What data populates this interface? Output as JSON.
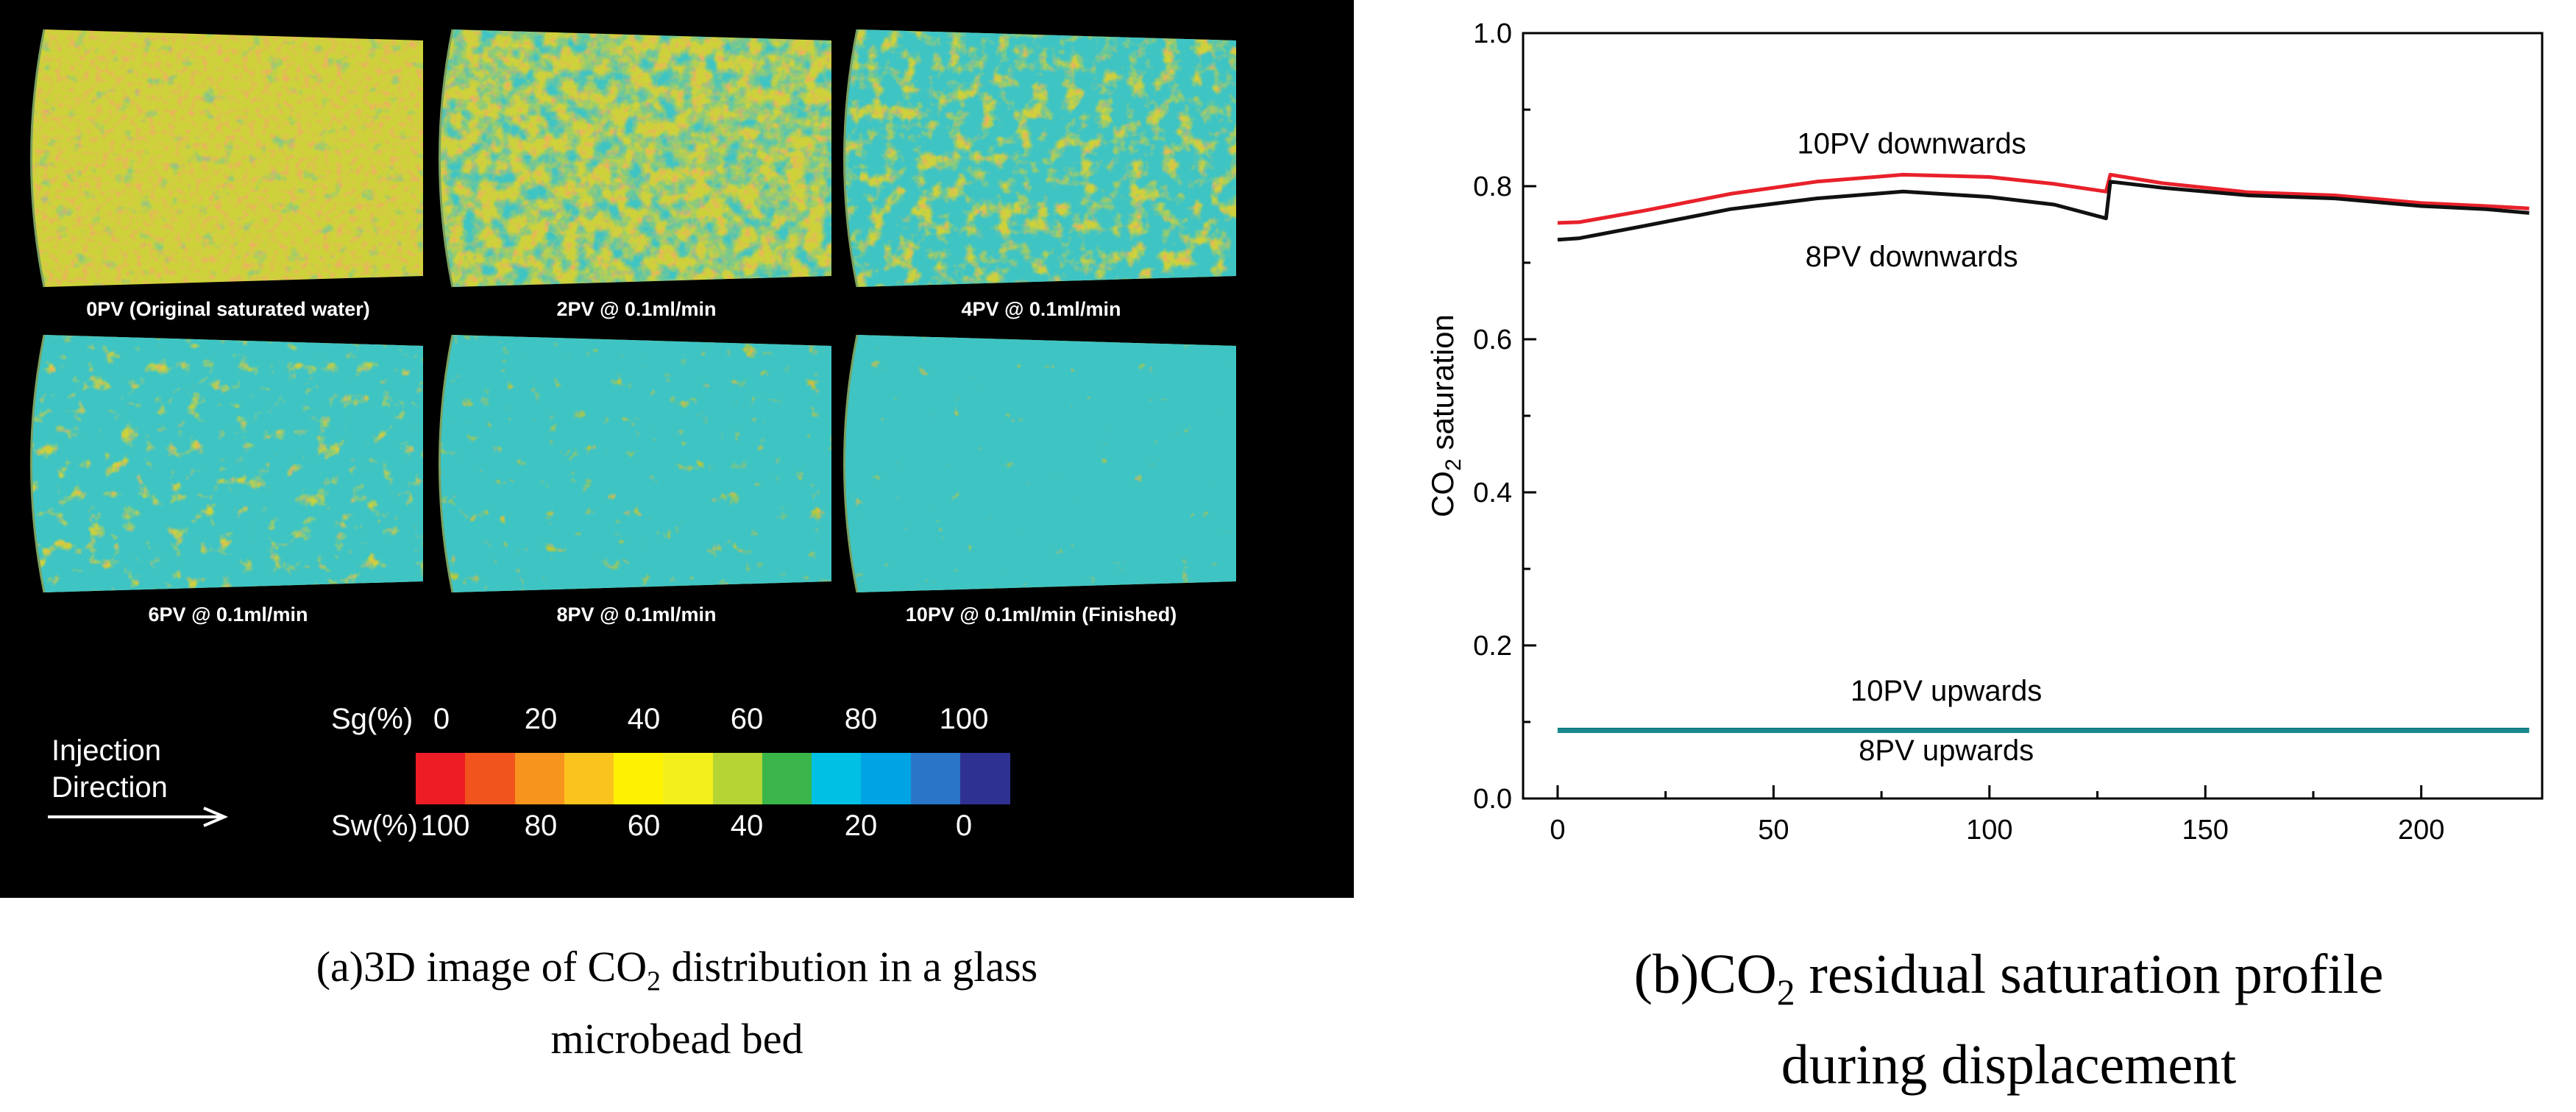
{
  "panel_a": {
    "beds": [
      {
        "label": "0PV (Original saturated water)",
        "level": 0
      },
      {
        "label": "2PV @ 0.1ml/min",
        "level": 1
      },
      {
        "label": "4PV @ 0.1ml/min",
        "level": 2
      },
      {
        "label": "6PV @ 0.1ml/min",
        "level": 3
      },
      {
        "label": "8PV @ 0.1ml/min",
        "level": 4
      },
      {
        "label": "10PV @ 0.1ml/min (Finished)",
        "level": 5
      }
    ],
    "sg_label": "Sg(%)",
    "sw_label": "Sw(%)",
    "sg_ticks": [
      "0",
      "20",
      "40",
      "60",
      "80",
      "100"
    ],
    "sw_ticks": [
      "100",
      "80",
      "60",
      "40",
      "20",
      "0"
    ],
    "colorbar": [
      "#ee1c24",
      "#f2541d",
      "#f7941d",
      "#fbc41d",
      "#fff200",
      "#f2ef1c",
      "#b6d433",
      "#39b54a",
      "#00c0e4",
      "#00a4e4",
      "#2a75c8",
      "#2e3192"
    ],
    "injection_label_line1": "Injection",
    "injection_label_line2": "Direction"
  },
  "captions": {
    "a_prefix": "(a)3D image of CO",
    "a_sub": "2",
    "a_suffix": " distribution in a glass",
    "a_line2": "microbead bed",
    "b_prefix": "(b)CO",
    "b_sub": "2",
    "b_suffix": " residual saturation profile",
    "b_line2": "during displacement"
  },
  "chart_data": {
    "type": "line",
    "title": "",
    "xlabel": "",
    "ylabel_main": "CO",
    "ylabel_sub": "2",
    "ylabel_rest": " saturation",
    "xlim": [
      -8,
      228
    ],
    "ylim": [
      0.0,
      1.0
    ],
    "xticks": [
      0,
      50,
      100,
      150,
      200
    ],
    "yticks": [
      0.0,
      0.2,
      0.4,
      0.6,
      0.8,
      1.0
    ],
    "ytick_labels": [
      "0.0",
      "0.2",
      "0.4",
      "0.6",
      "0.8",
      "1.0"
    ],
    "series": [
      {
        "name": "10PV downwards",
        "color": "#e8212b",
        "x": [
          0,
          5,
          20,
          40,
          60,
          80,
          100,
          115,
          127,
          128,
          140,
          160,
          180,
          200,
          215,
          225
        ],
        "y": [
          0.752,
          0.753,
          0.768,
          0.79,
          0.806,
          0.815,
          0.812,
          0.803,
          0.793,
          0.815,
          0.804,
          0.792,
          0.788,
          0.778,
          0.774,
          0.771
        ]
      },
      {
        "name": "8PV downwards",
        "color": "#111111",
        "x": [
          0,
          5,
          20,
          40,
          60,
          80,
          100,
          115,
          127,
          128,
          140,
          160,
          180,
          200,
          215,
          225
        ],
        "y": [
          0.73,
          0.732,
          0.748,
          0.77,
          0.784,
          0.793,
          0.786,
          0.776,
          0.758,
          0.806,
          0.798,
          0.788,
          0.784,
          0.774,
          0.77,
          0.765
        ]
      },
      {
        "name": "10PV upwards",
        "color": "#0f7a80",
        "x": [
          0,
          50,
          100,
          150,
          200,
          225
        ],
        "y": [
          0.09,
          0.09,
          0.09,
          0.09,
          0.09,
          0.09
        ]
      },
      {
        "name": "8PV upwards",
        "color": "#1a8a8f",
        "x": [
          0,
          50,
          100,
          150,
          200,
          225
        ],
        "y": [
          0.088,
          0.088,
          0.088,
          0.088,
          0.088,
          0.088
        ]
      }
    ],
    "annotations": [
      {
        "text": "10PV downwards",
        "x": 82,
        "y": 0.843
      },
      {
        "text": "8PV downwards",
        "x": 82,
        "y": 0.695
      },
      {
        "text": "10PV upwards",
        "x": 90,
        "y": 0.128
      },
      {
        "text": "8PV upwards",
        "x": 90,
        "y": 0.05
      }
    ]
  }
}
